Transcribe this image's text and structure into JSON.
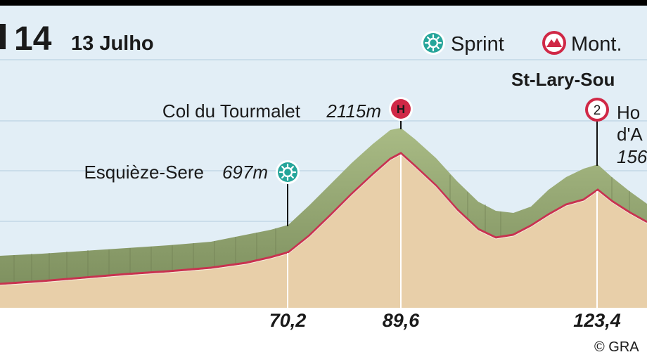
{
  "header": {
    "stage_number": "14",
    "date": "13 Julho"
  },
  "legend": {
    "sprint_label": "Sprint",
    "mountain_label": "Mont."
  },
  "finish_label": "St-Lary-Sou",
  "waypoints": [
    {
      "name": "Esquièze-Sere",
      "altitude": "697m",
      "km": "70,2",
      "type": "sprint-icon"
    },
    {
      "name": "Col du Tourmalet",
      "altitude": "2115m",
      "km": "89,6",
      "type": "mountain-icon",
      "category": "H"
    },
    {
      "name_line1": "Ho",
      "name_line2": "d'A",
      "altitude": "156",
      "km": "123,4",
      "type": "mountain-icon",
      "category": "2"
    }
  ],
  "credit": "© GRA",
  "colors": {
    "sky": "#e2eef6",
    "ground": "#e8cfa9",
    "slope": "#9aac78",
    "profile_line": "#c8324f",
    "sprint": "#26a59a",
    "mountain": "#d02846"
  }
}
